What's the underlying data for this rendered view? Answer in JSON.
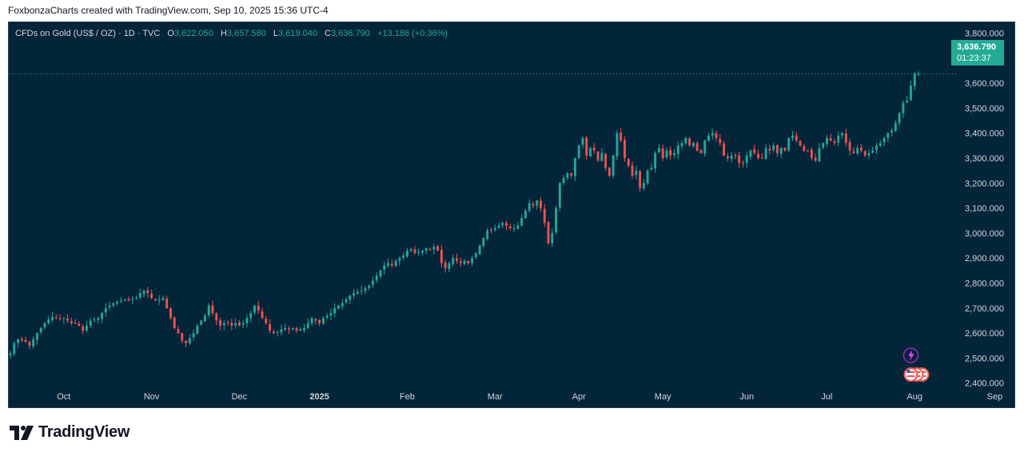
{
  "caption": "FoxbonzaCharts created with TradingView.com, Sep 10, 2025 15:36 UTC-4",
  "legend": {
    "symbol": "CFDs on Gold (US$ / OZ) · 1D · TVC",
    "open_label": "O",
    "open": "3,622.050",
    "high_label": "H",
    "high": "3,657.580",
    "low_label": "L",
    "low": "3,619.040",
    "close_label": "C",
    "close": "3,636.790",
    "change": "+13.186 (+0.36%)"
  },
  "price_tag": {
    "price": "3,636.790",
    "countdown": "01:23:37"
  },
  "footer": {
    "brand": "TradingView"
  },
  "colors": {
    "background": "#03253a",
    "up": "#26a69a",
    "down": "#ef5350",
    "axis_text": "#d1d4dc",
    "price_line": "#22ab94"
  },
  "icons": [
    "tradingview-logo-icon",
    "lightning-event-icon",
    "us-flag-event-icon"
  ],
  "chart_data": {
    "type": "candlestick",
    "title": "CFDs on Gold (US$ / OZ) · 1D · TVC",
    "xlabel": "",
    "ylabel": "",
    "ylim": [
      2380,
      3830
    ],
    "y_ticks": [
      "3,800.000",
      "3,700.000",
      "3,600.000",
      "3,500.000",
      "3,400.000",
      "3,300.000",
      "3,200.000",
      "3,100.000",
      "3,000.000",
      "2,900.000",
      "2,800.000",
      "2,700.000",
      "2,600.000",
      "2,500.000",
      "2,400.000"
    ],
    "y_tick_values": [
      3800,
      3700,
      3600,
      3500,
      3400,
      3300,
      3200,
      3100,
      3000,
      2900,
      2800,
      2700,
      2600,
      2500,
      2400
    ],
    "x_ticks": [
      "Oct",
      "Nov",
      "Dec",
      "2025",
      "Feb",
      "Mar",
      "Apr",
      "May",
      "Jun",
      "Jul",
      "Aug",
      "Sep"
    ],
    "x_tick_index": [
      14,
      37,
      60,
      81,
      104,
      127,
      149,
      171,
      193,
      214,
      237,
      258
    ],
    "last_price": 3636.79,
    "closes": [
      2520,
      2560,
      2575,
      2570,
      2565,
      2550,
      2575,
      2600,
      2620,
      2640,
      2655,
      2665,
      2662,
      2658,
      2660,
      2650,
      2640,
      2640,
      2630,
      2610,
      2630,
      2650,
      2655,
      2660,
      2680,
      2700,
      2710,
      2720,
      2725,
      2730,
      2735,
      2730,
      2738,
      2740,
      2760,
      2770,
      2760,
      2740,
      2730,
      2735,
      2740,
      2700,
      2660,
      2620,
      2600,
      2570,
      2560,
      2580,
      2600,
      2630,
      2650,
      2670,
      2710,
      2680,
      2650,
      2630,
      2640,
      2640,
      2630,
      2640,
      2630,
      2640,
      2660,
      2680,
      2710,
      2690,
      2660,
      2640,
      2610,
      2600,
      2605,
      2615,
      2620,
      2615,
      2620,
      2610,
      2615,
      2620,
      2640,
      2660,
      2650,
      2640,
      2660,
      2670,
      2680,
      2700,
      2710,
      2720,
      2735,
      2750,
      2760,
      2765,
      2770,
      2780,
      2790,
      2810,
      2830,
      2850,
      2870,
      2880,
      2870,
      2890,
      2900,
      2910,
      2930,
      2935,
      2920,
      2925,
      2930,
      2940,
      2935,
      2945,
      2930,
      2880,
      2860,
      2880,
      2900,
      2890,
      2880,
      2890,
      2880,
      2900,
      2920,
      2950,
      2980,
      3010,
      3010,
      3020,
      3030,
      3040,
      3030,
      3020,
      3020,
      3030,
      3060,
      3090,
      3120,
      3110,
      3130,
      3100,
      3040,
      2960,
      3000,
      3100,
      3200,
      3220,
      3240,
      3230,
      3300,
      3350,
      3380,
      3310,
      3340,
      3330,
      3290,
      3320,
      3260,
      3230,
      3310,
      3400,
      3370,
      3300,
      3270,
      3230,
      3250,
      3180,
      3200,
      3250,
      3260,
      3320,
      3340,
      3300,
      3330,
      3310,
      3320,
      3350,
      3360,
      3380,
      3350,
      3360,
      3330,
      3320,
      3370,
      3390,
      3400,
      3380,
      3360,
      3310,
      3300,
      3310,
      3310,
      3280,
      3280,
      3310,
      3330,
      3320,
      3300,
      3300,
      3340,
      3330,
      3350,
      3320,
      3340,
      3330,
      3380,
      3390,
      3370,
      3350,
      3330,
      3330,
      3300,
      3290,
      3340,
      3360,
      3380,
      3370,
      3360,
      3390,
      3400,
      3360,
      3330,
      3320,
      3340,
      3330,
      3310,
      3320,
      3330,
      3350,
      3360,
      3380,
      3400,
      3410,
      3440,
      3480,
      3520,
      3530,
      3590,
      3640,
      3636.79
    ],
    "series": [
      {
        "name": "CFDs on Gold (US$ / OZ)",
        "open": "3,622.050",
        "high": "3,657.580",
        "low": "3,619.040",
        "close": "3,636.790"
      }
    ]
  }
}
